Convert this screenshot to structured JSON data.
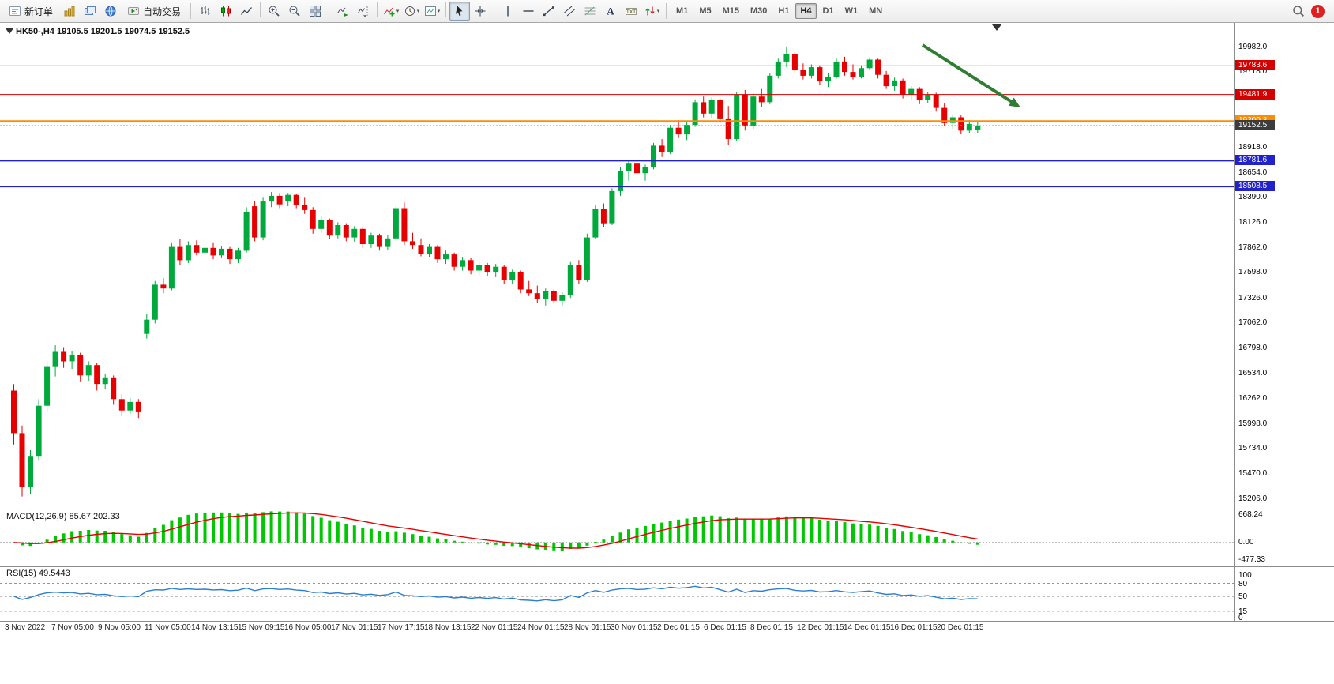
{
  "toolbar": {
    "new_order_label": "新订单",
    "autotrading_label": "自动交易",
    "left_icons": [
      "new-chart-icon",
      "profiles-icon",
      "data-window-icon"
    ],
    "icon_groups": [
      [
        "bar-chart-icon",
        "candlestick-chart-icon",
        "line-chart-icon"
      ],
      [
        "zoom-in-icon",
        "zoom-out-icon",
        "tile-windows-icon"
      ],
      [
        "auto-scroll-icon",
        "chart-shift-icon"
      ],
      [
        "indicators-icon",
        "periods-icon",
        "templates-icon"
      ],
      [
        "cursor-icon",
        "crosshair-icon"
      ],
      [
        "vertical-line-icon",
        "horizontal-line-icon",
        "trendline-icon",
        "channel-icon",
        "fibonacci-icon",
        "text-icon",
        "label-icon",
        "arrows-icon"
      ]
    ],
    "caret_icons": [
      "indicators-icon",
      "periods-icon",
      "templates-icon",
      "arrows-icon"
    ],
    "active_tool": "cursor-icon",
    "timeframes": [
      "M1",
      "M5",
      "M15",
      "M30",
      "H1",
      "H4",
      "D1",
      "W1",
      "MN"
    ],
    "active_timeframe": "H4",
    "notification_count": "1"
  },
  "chart_header": "HK50-,H4 19105.5 19201.5 19074.5 19152.5",
  "chart_data": {
    "type": "candlestick",
    "symbol": "HK50-",
    "timeframe": "H4",
    "ohlc_display": {
      "open": "19105.5",
      "high": "19201.5",
      "low": "19074.5",
      "close": "19152.5"
    },
    "price_range": [
      15110,
      20230
    ],
    "price_ticks": [
      "19982.0",
      "19718.0",
      "19454.0",
      "19190.0",
      "18918.0",
      "18654.0",
      "18390.0",
      "18126.0",
      "17862.0",
      "17598.0",
      "17326.0",
      "17062.0",
      "16798.0",
      "16534.0",
      "16262.0",
      "15998.0",
      "15734.0",
      "15470.0",
      "15206.0"
    ],
    "levels": [
      {
        "price": 19783.6,
        "label": "19783.6",
        "color": "#d40000",
        "thickness": 1,
        "style": "solid"
      },
      {
        "price": 19481.9,
        "label": "19481.9",
        "color": "#d40000",
        "thickness": 1,
        "style": "solid"
      },
      {
        "price": 19200.3,
        "label": "19200.3",
        "color": "#ff8c00",
        "thickness": 2,
        "style": "solid"
      },
      {
        "price": 19152.5,
        "label": "19152.5",
        "color": "#999999",
        "thickness": 1,
        "style": "dotted",
        "label_bg": "#3c3c3c"
      },
      {
        "price": 18781.6,
        "label": "18781.6",
        "color": "#2222cc",
        "thickness": 2,
        "style": "solid"
      },
      {
        "price": 18508.5,
        "label": "18508.5",
        "color": "#2222cc",
        "thickness": 2,
        "style": "solid"
      }
    ],
    "time_labels": [
      "3 Nov 2022",
      "7 Nov 05:00",
      "9 Nov 05:00",
      "11 Nov 05:00",
      "14 Nov 13:15",
      "15 Nov 09:15",
      "16 Nov 05:00",
      "17 Nov 01:15",
      "17 Nov 17:15",
      "18 Nov 13:15",
      "22 Nov 01:15",
      "24 Nov 01:15",
      "28 Nov 01:15",
      "30 Nov 01:15",
      "2 Dec 01:15",
      "6 Dec 01:15",
      "8 Dec 01:15",
      "12 Dec 01:15",
      "14 Dec 01:15",
      "16 Dec 01:15",
      "20 Dec 01:15"
    ],
    "up_color": "#00a93c",
    "down_color": "#e60000",
    "annotation_arrow": {
      "color": "#2e7d32"
    },
    "candles": [
      [
        16350,
        16420,
        15780,
        15900
      ],
      [
        15900,
        15980,
        15230,
        15330
      ],
      [
        15330,
        15720,
        15260,
        15660
      ],
      [
        15660,
        16260,
        15610,
        16190
      ],
      [
        16190,
        16660,
        16130,
        16600
      ],
      [
        16600,
        16830,
        16500,
        16760
      ],
      [
        16760,
        16810,
        16590,
        16660
      ],
      [
        16660,
        16770,
        16580,
        16730
      ],
      [
        16730,
        16750,
        16440,
        16510
      ],
      [
        16510,
        16660,
        16450,
        16620
      ],
      [
        16620,
        16640,
        16350,
        16420
      ],
      [
        16420,
        16530,
        16370,
        16490
      ],
      [
        16490,
        16510,
        16200,
        16260
      ],
      [
        16260,
        16310,
        16080,
        16140
      ],
      [
        16140,
        16270,
        16100,
        16230
      ],
      [
        16230,
        16260,
        16060,
        16130
      ],
      [
        16950,
        17160,
        16900,
        17100
      ],
      [
        17100,
        17510,
        17060,
        17470
      ],
      [
        17470,
        17540,
        17380,
        17430
      ],
      [
        17430,
        17910,
        17410,
        17870
      ],
      [
        17870,
        17950,
        17680,
        17730
      ],
      [
        17730,
        17930,
        17700,
        17890
      ],
      [
        17890,
        17940,
        17780,
        17810
      ],
      [
        17810,
        17890,
        17760,
        17860
      ],
      [
        17860,
        17910,
        17740,
        17780
      ],
      [
        17780,
        17880,
        17750,
        17850
      ],
      [
        17850,
        17870,
        17690,
        17740
      ],
      [
        17740,
        17860,
        17700,
        17830
      ],
      [
        17830,
        18290,
        17810,
        18240
      ],
      [
        18300,
        18360,
        17930,
        17970
      ],
      [
        17970,
        18390,
        17940,
        18350
      ],
      [
        18350,
        18450,
        18290,
        18410
      ],
      [
        18410,
        18440,
        18280,
        18320
      ],
      [
        18350,
        18440,
        18300,
        18420
      ],
      [
        18420,
        18430,
        18280,
        18310
      ],
      [
        18310,
        18390,
        18220,
        18260
      ],
      [
        18260,
        18290,
        18010,
        18060
      ],
      [
        18060,
        18190,
        18020,
        18150
      ],
      [
        18150,
        18170,
        17950,
        17990
      ],
      [
        17990,
        18130,
        17960,
        18100
      ],
      [
        18100,
        18120,
        17930,
        17970
      ],
      [
        17970,
        18090,
        17920,
        18060
      ],
      [
        18060,
        18080,
        17860,
        17900
      ],
      [
        17900,
        18020,
        17860,
        17990
      ],
      [
        17990,
        18010,
        17830,
        17870
      ],
      [
        17870,
        18000,
        17840,
        17960
      ],
      [
        17960,
        18310,
        17940,
        18280
      ],
      [
        18280,
        18340,
        17890,
        17930
      ],
      [
        17930,
        18020,
        17850,
        17890
      ],
      [
        17890,
        17960,
        17770,
        17800
      ],
      [
        17800,
        17900,
        17760,
        17870
      ],
      [
        17870,
        17890,
        17700,
        17740
      ],
      [
        17740,
        17830,
        17690,
        17790
      ],
      [
        17790,
        17810,
        17620,
        17660
      ],
      [
        17660,
        17760,
        17620,
        17730
      ],
      [
        17730,
        17750,
        17580,
        17620
      ],
      [
        17620,
        17710,
        17560,
        17680
      ],
      [
        17680,
        17700,
        17560,
        17600
      ],
      [
        17600,
        17690,
        17550,
        17660
      ],
      [
        17660,
        17680,
        17480,
        17520
      ],
      [
        17520,
        17630,
        17480,
        17600
      ],
      [
        17600,
        17620,
        17380,
        17420
      ],
      [
        17420,
        17510,
        17350,
        17380
      ],
      [
        17380,
        17460,
        17280,
        17320
      ],
      [
        17320,
        17430,
        17250,
        17400
      ],
      [
        17400,
        17420,
        17270,
        17300
      ],
      [
        17300,
        17390,
        17250,
        17360
      ],
      [
        17360,
        17710,
        17330,
        17680
      ],
      [
        17680,
        17730,
        17480,
        17520
      ],
      [
        17520,
        18010,
        17500,
        17970
      ],
      [
        17970,
        18310,
        17950,
        18270
      ],
      [
        18270,
        18330,
        18080,
        18120
      ],
      [
        18120,
        18490,
        18100,
        18460
      ],
      [
        18460,
        18710,
        18410,
        18670
      ],
      [
        18670,
        18790,
        18570,
        18750
      ],
      [
        18750,
        18800,
        18600,
        18650
      ],
      [
        18650,
        18740,
        18570,
        18710
      ],
      [
        18710,
        18970,
        18690,
        18940
      ],
      [
        18940,
        19010,
        18820,
        18870
      ],
      [
        18870,
        19160,
        18850,
        19130
      ],
      [
        19130,
        19210,
        19020,
        19060
      ],
      [
        19060,
        19190,
        19000,
        19160
      ],
      [
        19160,
        19430,
        19140,
        19400
      ],
      [
        19400,
        19460,
        19240,
        19280
      ],
      [
        19280,
        19450,
        19230,
        19420
      ],
      [
        19420,
        19440,
        19180,
        19220
      ],
      [
        19220,
        19360,
        18950,
        19010
      ],
      [
        19010,
        19510,
        18990,
        19480
      ],
      [
        19480,
        19530,
        19100,
        19150
      ],
      [
        19150,
        19490,
        19120,
        19460
      ],
      [
        19460,
        19540,
        19350,
        19400
      ],
      [
        19400,
        19710,
        19380,
        19680
      ],
      [
        19680,
        19860,
        19650,
        19830
      ],
      [
        19830,
        19990,
        19770,
        19910
      ],
      [
        19910,
        19930,
        19700,
        19740
      ],
      [
        19740,
        19810,
        19640,
        19680
      ],
      [
        19680,
        19800,
        19650,
        19770
      ],
      [
        19770,
        19790,
        19580,
        19620
      ],
      [
        19620,
        19710,
        19560,
        19670
      ],
      [
        19670,
        19860,
        19650,
        19830
      ],
      [
        19830,
        19880,
        19680,
        19720
      ],
      [
        19720,
        19800,
        19640,
        19670
      ],
      [
        19670,
        19790,
        19650,
        19760
      ],
      [
        19760,
        19870,
        19740,
        19850
      ],
      [
        19850,
        19860,
        19650,
        19690
      ],
      [
        19690,
        19730,
        19540,
        19570
      ],
      [
        19570,
        19660,
        19520,
        19630
      ],
      [
        19630,
        19650,
        19440,
        19480
      ],
      [
        19480,
        19570,
        19420,
        19540
      ],
      [
        19540,
        19560,
        19380,
        19420
      ],
      [
        19420,
        19510,
        19390,
        19480
      ],
      [
        19480,
        19500,
        19300,
        19340
      ],
      [
        19340,
        19390,
        19150,
        19180
      ],
      [
        19180,
        19270,
        19120,
        19240
      ],
      [
        19240,
        19260,
        19060,
        19100
      ],
      [
        19100,
        19210,
        19070,
        19170
      ],
      [
        19105.5,
        19201.5,
        19074.5,
        19152.5
      ]
    ],
    "macd": {
      "label": "MACD(12,26,9) 85.67 202.33",
      "axis_labels": [
        "668.24",
        "0.00",
        "-477.33"
      ],
      "histogram_color": "#00c800",
      "signal_color": "#e60000"
    },
    "rsi": {
      "label": "RSI(15) 49.5443",
      "axis_labels": [
        "100",
        "80",
        "50",
        "15",
        "0"
      ],
      "levels": [
        80,
        50,
        15
      ],
      "line_color": "#2a7fd0"
    }
  }
}
